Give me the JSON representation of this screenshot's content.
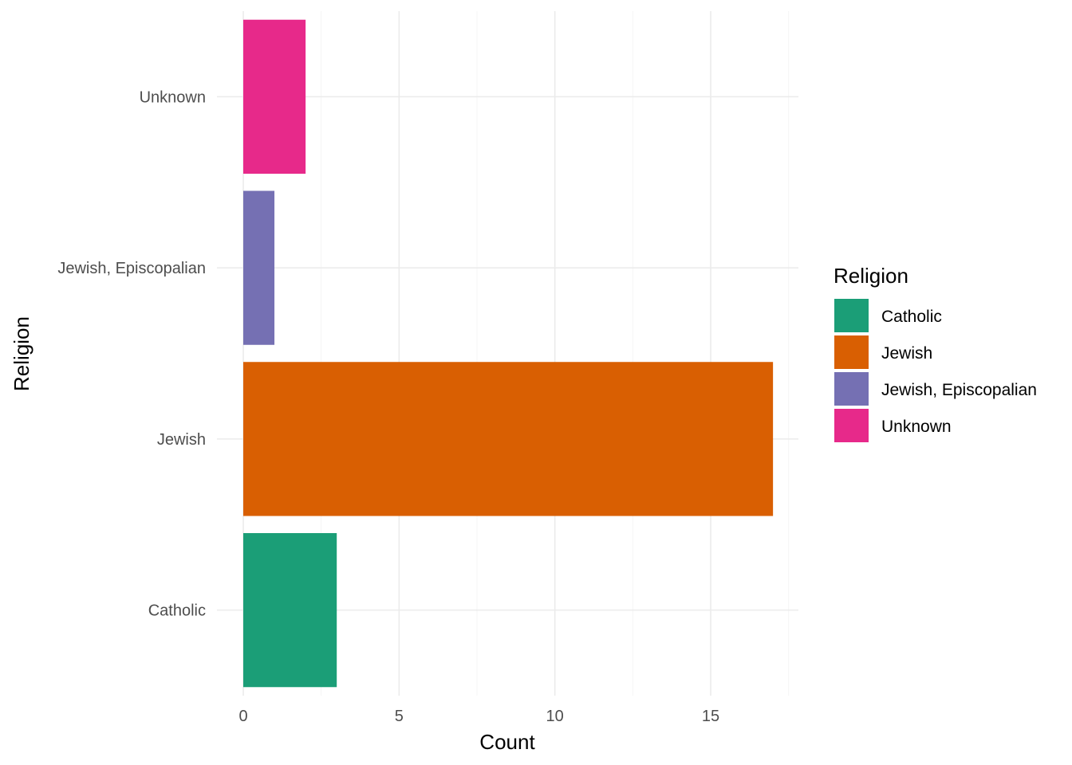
{
  "chart_data": {
    "type": "bar",
    "orientation": "horizontal",
    "categories": [
      "Catholic",
      "Jewish",
      "Jewish, Episcopalian",
      "Unknown"
    ],
    "values": [
      3,
      17,
      1,
      2
    ],
    "colors": [
      "#1b9e77",
      "#d95f02",
      "#7570b3",
      "#e7298a"
    ],
    "xlabel": "Count",
    "ylabel": "Religion",
    "xlim": [
      0,
      17.85
    ],
    "xticks": [
      0,
      5,
      10,
      15
    ],
    "grid": true,
    "legend": {
      "title": "Religion",
      "placement": "right",
      "entries": [
        "Catholic",
        "Jewish",
        "Jewish, Episcopalian",
        "Unknown"
      ]
    }
  }
}
